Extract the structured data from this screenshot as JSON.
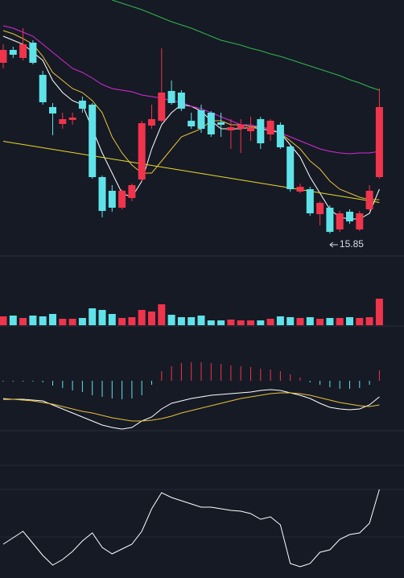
{
  "chart_data": [
    {
      "type": "candlestick",
      "ylim": [
        15.29,
        21.65
      ],
      "up_color": "#f0344c",
      "down_color": "#5fe3e8",
      "annotation": "15.85",
      "open": [
        20.09,
        20.41,
        20.21,
        20.59,
        19.79,
        18.99,
        18.57,
        18.67,
        19.15,
        19.05,
        17.25,
        16.91,
        16.49,
        16.73,
        17.19,
        18.53,
        18.65,
        19.39,
        19.35,
        18.65,
        18.91,
        18.85,
        18.61,
        18.41,
        18.45,
        18.39,
        18.69,
        18.31,
        18.55,
        18.01,
        16.89,
        16.95,
        16.33,
        16.49,
        15.95,
        16.39,
        15.95,
        16.45,
        17.25
      ],
      "high": [
        20.55,
        20.49,
        20.95,
        20.65,
        19.89,
        19.09,
        18.85,
        18.85,
        19.25,
        19.09,
        17.29,
        17.05,
        16.95,
        17.09,
        18.65,
        19.05,
        20.45,
        19.65,
        19.41,
        18.85,
        19.05,
        18.89,
        18.85,
        18.69,
        18.69,
        18.75,
        18.75,
        18.69,
        18.61,
        18.05,
        17.09,
        17.01,
        16.65,
        16.55,
        16.41,
        16.45,
        16.41,
        17.05,
        19.45
      ],
      "low": [
        19.95,
        20.21,
        20.15,
        20.05,
        19.05,
        18.29,
        18.45,
        18.55,
        18.85,
        17.21,
        16.25,
        16.39,
        16.45,
        16.65,
        17.15,
        18.45,
        18.61,
        19.05,
        18.89,
        18.45,
        18.35,
        18.25,
        18.25,
        17.95,
        17.85,
        18.15,
        17.95,
        18.15,
        17.95,
        16.89,
        16.85,
        16.29,
        16.05,
        15.85,
        15.89,
        16.09,
        15.91,
        16.41,
        17.21
      ],
      "close": [
        20.41,
        20.29,
        20.55,
        20.09,
        19.11,
        18.83,
        18.69,
        18.73,
        18.95,
        17.25,
        16.41,
        16.49,
        16.91,
        17.05,
        18.59,
        18.69,
        19.35,
        19.09,
        18.95,
        18.51,
        18.45,
        18.31,
        18.55,
        18.49,
        18.55,
        18.49,
        18.09,
        18.65,
        17.99,
        16.95,
        17.01,
        16.35,
        16.61,
        15.89,
        16.35,
        16.15,
        16.35,
        16.91,
        18.99
      ],
      "series": [
        {
          "color": "#ffffff",
          "values": [
            20.75,
            20.65,
            20.55,
            20.35,
            20.15,
            19.65,
            19.35,
            19.15,
            19.05,
            18.45,
            17.85,
            17.35,
            16.85,
            16.75,
            17.15,
            17.95,
            18.55,
            18.85,
            19.05,
            19.01,
            18.89,
            18.65,
            18.45,
            18.45,
            18.45,
            18.49,
            18.45,
            18.41,
            18.35,
            18.05,
            17.75,
            17.25,
            16.85,
            16.45,
            16.25,
            16.21,
            16.21,
            16.35,
            16.95
          ]
        },
        {
          "color": "#e8c23a",
          "values": [
            20.89,
            20.81,
            20.69,
            20.55,
            20.25,
            19.85,
            19.65,
            19.45,
            19.35,
            19.15,
            18.85,
            18.25,
            17.85,
            17.55,
            17.35,
            17.35,
            17.65,
            17.95,
            18.25,
            18.35,
            18.45,
            18.65,
            18.65,
            18.55,
            18.55,
            18.51,
            18.49,
            18.45,
            18.35,
            18.15,
            17.95,
            17.65,
            17.45,
            17.15,
            16.95,
            16.85,
            16.75,
            16.69,
            16.69
          ]
        },
        {
          "color": "#d62ad6",
          "values": [
            21.01,
            20.95,
            20.85,
            20.75,
            20.55,
            20.35,
            20.15,
            19.95,
            19.85,
            19.71,
            19.55,
            19.45,
            19.41,
            19.37,
            19.29,
            19.25,
            19.21,
            19.15,
            19.11,
            19.01,
            18.95,
            18.85,
            18.75,
            18.65,
            18.55,
            18.55,
            18.49,
            18.45,
            18.35,
            18.25,
            18.15,
            18.05,
            17.95,
            17.89,
            17.85,
            17.83,
            17.85,
            17.85,
            17.89
          ]
        },
        {
          "color": "#2fb84a",
          "values": [
            null,
            null,
            null,
            null,
            null,
            null,
            null,
            null,
            null,
            null,
            null,
            21.65,
            21.57,
            21.49,
            21.41,
            21.31,
            21.21,
            21.11,
            21.03,
            20.95,
            20.85,
            20.75,
            20.65,
            20.59,
            20.53,
            20.45,
            20.39,
            20.31,
            20.25,
            20.17,
            20.09,
            20.01,
            19.93,
            19.85,
            19.77,
            19.67,
            19.59,
            19.49,
            19.41
          ]
        },
        {
          "color": "#e8d82a",
          "values": [
            18.14,
            18.1,
            18.06,
            18.02,
            17.98,
            17.94,
            17.9,
            17.86,
            17.82,
            17.78,
            17.74,
            17.7,
            17.66,
            17.62,
            17.58,
            17.54,
            17.5,
            17.46,
            17.42,
            17.38,
            17.34,
            17.3,
            17.26,
            17.22,
            17.18,
            17.14,
            17.1,
            17.06,
            17.02,
            16.98,
            16.94,
            16.9,
            16.86,
            16.82,
            16.78,
            16.74,
            16.7,
            16.66,
            16.62
          ]
        }
      ]
    },
    {
      "type": "bar",
      "ylim": [
        0,
        86
      ],
      "values": [
        11,
        12,
        9,
        12,
        11,
        14,
        8,
        8,
        9,
        21,
        19,
        14,
        9,
        10,
        19,
        17,
        26,
        13,
        10,
        10,
        12,
        6,
        6,
        7,
        6,
        6,
        6,
        8,
        11,
        10,
        9,
        10,
        8,
        9,
        9,
        10,
        9,
        10,
        33
      ]
    },
    {
      "type": "macd",
      "ylim": [
        -62,
        68
      ],
      "up_color": "#f0344c",
      "down_color": "#5fe3e8",
      "values": [
        -1,
        -1,
        -1,
        -1,
        -2,
        -6,
        -9,
        -12,
        -14,
        -18,
        -20,
        -22,
        -23,
        -22,
        -18,
        -5,
        12,
        18,
        22,
        23,
        23,
        22,
        21,
        19,
        18,
        17,
        15,
        14,
        12,
        8,
        4,
        -2,
        -5,
        -8,
        -10,
        -10,
        -9,
        -5,
        13
      ],
      "series": [
        {
          "color": "#ffffff",
          "values": [
            -23,
            -23,
            -23,
            -24,
            -25,
            -30,
            -35,
            -40,
            -45,
            -50,
            -55,
            -58,
            -60,
            -58,
            -50,
            -45,
            -35,
            -28,
            -25,
            -22,
            -20,
            -18,
            -17,
            -16,
            -15,
            -14,
            -12,
            -11,
            -12,
            -15,
            -18,
            -22,
            -28,
            -33,
            -35,
            -36,
            -35,
            -30,
            -20
          ]
        },
        {
          "color": "#e8c23a",
          "values": [
            -22,
            -23,
            -24,
            -25,
            -27,
            -29,
            -32,
            -35,
            -38,
            -40,
            -43,
            -46,
            -48,
            -50,
            -50,
            -49,
            -47,
            -44,
            -40,
            -37,
            -34,
            -31,
            -28,
            -25,
            -22,
            -20,
            -18,
            -16,
            -15,
            -15,
            -16,
            -18,
            -21,
            -24,
            -27,
            -29,
            -31,
            -32,
            -30
          ]
        }
      ]
    },
    {
      "type": "line",
      "ylim": [
        0,
        183
      ],
      "yticks": [
        51,
        110,
        140
      ],
      "grid": true,
      "color": "#ffffff",
      "values": [
        42,
        50,
        58,
        43,
        28,
        16,
        23,
        33,
        46,
        56,
        38,
        30,
        36,
        42,
        58,
        86,
        106,
        100,
        96,
        92,
        88,
        88,
        86,
        84,
        83,
        80,
        73,
        76,
        66,
        18,
        14,
        18,
        32,
        35,
        48,
        54,
        56,
        68,
        110
      ]
    }
  ]
}
